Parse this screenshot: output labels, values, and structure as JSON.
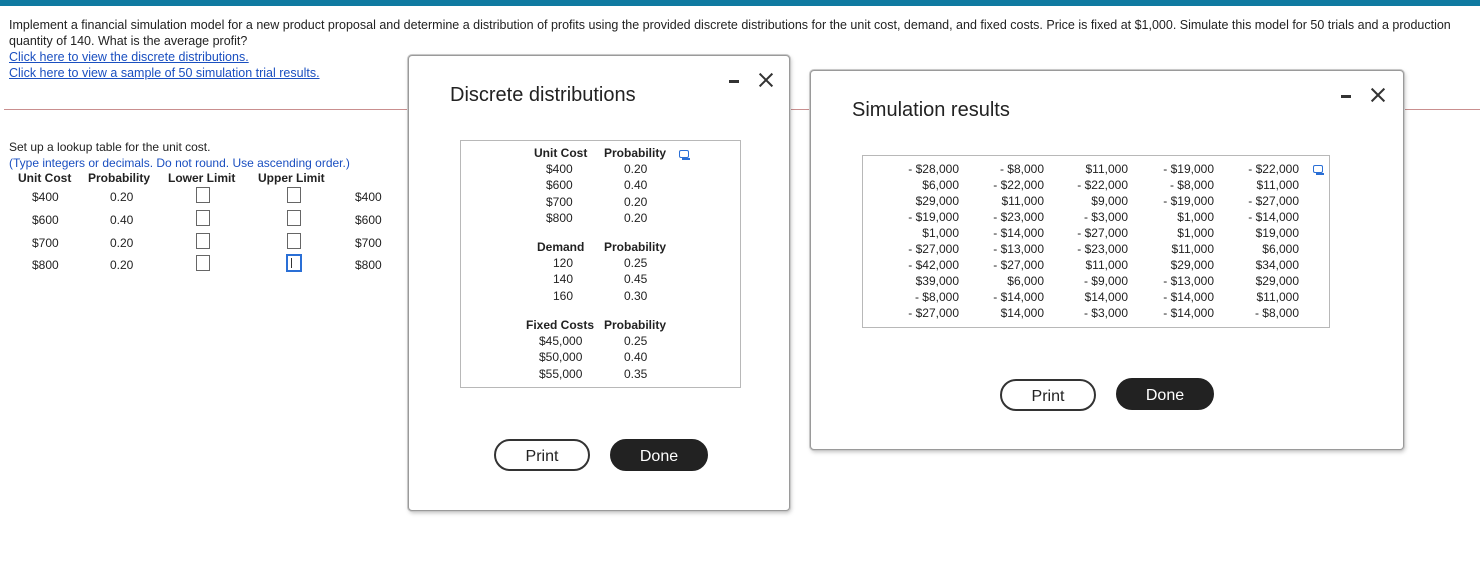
{
  "question": {
    "text": "Implement a financial simulation model for a new product proposal and determine a distribution of profits using the provided discrete distributions for the unit cost, demand, and fixed costs. Price is fixed at $1,000. Simulate this model for 50 trials and a production quantity of 140. What is the average profit?",
    "link_distributions": "Click here to view the discrete distributions.",
    "link_results": "Click here to view a sample of 50 simulation trial results."
  },
  "setup": {
    "instruction": "Set up a lookup table for the unit cost.",
    "hint": "(Type integers or decimals. Do not round. Use ascending order.)",
    "headers": [
      "Unit Cost",
      "Probability",
      "Lower Limit",
      "Upper Limit"
    ],
    "rows": [
      {
        "unit_cost": "$400",
        "probability": "0.20",
        "value": "$400"
      },
      {
        "unit_cost": "$600",
        "probability": "0.40",
        "value": "$600"
      },
      {
        "unit_cost": "$700",
        "probability": "0.20",
        "value": "$700"
      },
      {
        "unit_cost": "$800",
        "probability": "0.20",
        "value": "$800"
      }
    ]
  },
  "discrete_dialog": {
    "title": "Discrete distributions",
    "minimize_label": "–",
    "unit_cost_headers": [
      "Unit Cost",
      "Probability"
    ],
    "unit_cost_rows": [
      [
        "$400",
        "0.20"
      ],
      [
        "$600",
        "0.40"
      ],
      [
        "$700",
        "0.20"
      ],
      [
        "$800",
        "0.20"
      ]
    ],
    "demand_headers": [
      "Demand",
      "Probability"
    ],
    "demand_rows": [
      [
        "120",
        "0.25"
      ],
      [
        "140",
        "0.45"
      ],
      [
        "160",
        "0.30"
      ]
    ],
    "fixed_headers": [
      "Fixed Costs",
      "Probability"
    ],
    "fixed_rows": [
      [
        "$45,000",
        "0.25"
      ],
      [
        "$50,000",
        "0.40"
      ],
      [
        "$55,000",
        "0.35"
      ]
    ],
    "print_label": "Print",
    "done_label": "Done"
  },
  "results_dialog": {
    "title": "Simulation results",
    "columns": [
      [
        "- $28,000",
        "$6,000",
        "$29,000",
        "- $19,000",
        "$1,000",
        "- $27,000",
        "- $42,000",
        "$39,000",
        "- $8,000",
        "- $27,000"
      ],
      [
        "- $8,000",
        "- $22,000",
        "$11,000",
        "- $23,000",
        "- $14,000",
        "- $13,000",
        "- $27,000",
        "$6,000",
        "- $14,000",
        "$14,000"
      ],
      [
        "$11,000",
        "- $22,000",
        "$9,000",
        "- $3,000",
        "- $27,000",
        "- $23,000",
        "$11,000",
        "- $9,000",
        "$14,000",
        "- $3,000"
      ],
      [
        "- $19,000",
        "- $8,000",
        "- $19,000",
        "$1,000",
        "$1,000",
        "$11,000",
        "$29,000",
        "- $13,000",
        "- $14,000",
        "- $14,000"
      ],
      [
        "- $22,000",
        "$11,000",
        "- $27,000",
        "- $14,000",
        "$19,000",
        "$6,000",
        "$34,000",
        "$29,000",
        "$11,000",
        "- $8,000"
      ]
    ],
    "print_label": "Print",
    "done_label": "Done"
  }
}
